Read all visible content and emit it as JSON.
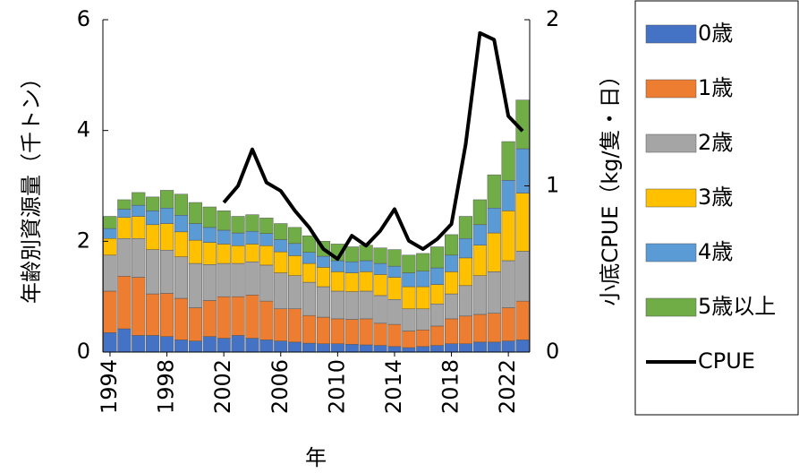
{
  "chart_data": {
    "type": "bar",
    "stacked": true,
    "x_label": "年",
    "y_label": "年齢別資源量（千トン）",
    "y2_label": "小底CPUE（kg/隻・日）",
    "x": [
      1994,
      1995,
      1996,
      1997,
      1998,
      1999,
      2000,
      2001,
      2002,
      2003,
      2004,
      2005,
      2006,
      2007,
      2008,
      2009,
      2010,
      2011,
      2012,
      2013,
      2014,
      2015,
      2016,
      2017,
      2018,
      2019,
      2020,
      2021,
      2022,
      2023
    ],
    "xlim": [
      1993.5,
      2023.5
    ],
    "xticks": [
      1994,
      1998,
      2002,
      2006,
      2010,
      2014,
      2018,
      2022
    ],
    "ylim": [
      0,
      6
    ],
    "yticks": [
      0,
      2,
      4,
      6
    ],
    "y2lim": [
      0,
      2
    ],
    "y2ticks": [
      0,
      1,
      2
    ],
    "legend": "right",
    "series": [
      {
        "name": "0歳",
        "color": "#4472c4",
        "values": [
          0.35,
          0.42,
          0.3,
          0.3,
          0.28,
          0.22,
          0.2,
          0.28,
          0.25,
          0.3,
          0.25,
          0.22,
          0.2,
          0.18,
          0.16,
          0.15,
          0.15,
          0.14,
          0.13,
          0.12,
          0.1,
          0.08,
          0.1,
          0.12,
          0.15,
          0.15,
          0.18,
          0.18,
          0.2,
          0.22
        ]
      },
      {
        "name": "1歳",
        "color": "#ed7d31",
        "values": [
          0.75,
          0.95,
          1.05,
          0.75,
          0.78,
          0.75,
          0.6,
          0.65,
          0.75,
          0.7,
          0.78,
          0.7,
          0.58,
          0.6,
          0.5,
          0.48,
          0.45,
          0.45,
          0.47,
          0.4,
          0.4,
          0.3,
          0.3,
          0.35,
          0.45,
          0.5,
          0.5,
          0.52,
          0.6,
          0.7
        ]
      },
      {
        "name": "2歳",
        "color": "#a5a5a5",
        "values": [
          0.65,
          0.68,
          0.7,
          0.8,
          0.78,
          0.75,
          0.8,
          0.65,
          0.6,
          0.6,
          0.6,
          0.65,
          0.65,
          0.6,
          0.6,
          0.55,
          0.5,
          0.5,
          0.5,
          0.5,
          0.45,
          0.4,
          0.38,
          0.4,
          0.45,
          0.55,
          0.7,
          0.75,
          0.85,
          0.9
        ]
      },
      {
        "name": "3歳",
        "color": "#ffc000",
        "values": [
          0.3,
          0.38,
          0.4,
          0.45,
          0.48,
          0.45,
          0.42,
          0.4,
          0.35,
          0.32,
          0.32,
          0.35,
          0.38,
          0.36,
          0.34,
          0.35,
          0.35,
          0.34,
          0.35,
          0.38,
          0.4,
          0.4,
          0.4,
          0.35,
          0.4,
          0.5,
          0.55,
          0.7,
          0.9,
          1.05
        ]
      },
      {
        "name": "4歳",
        "color": "#5b9bd5",
        "values": [
          0.18,
          0.15,
          0.2,
          0.25,
          0.28,
          0.3,
          0.3,
          0.27,
          0.25,
          0.23,
          0.23,
          0.22,
          0.22,
          0.22,
          0.2,
          0.2,
          0.2,
          0.2,
          0.2,
          0.2,
          0.2,
          0.25,
          0.28,
          0.3,
          0.3,
          0.35,
          0.37,
          0.45,
          0.55,
          0.8
        ]
      },
      {
        "name": "5歳以上",
        "color": "#70ad47",
        "values": [
          0.22,
          0.17,
          0.23,
          0.25,
          0.32,
          0.38,
          0.38,
          0.37,
          0.35,
          0.3,
          0.3,
          0.28,
          0.29,
          0.29,
          0.3,
          0.27,
          0.3,
          0.27,
          0.28,
          0.28,
          0.3,
          0.32,
          0.32,
          0.38,
          0.37,
          0.4,
          0.45,
          0.6,
          0.7,
          0.88
        ]
      },
      {
        "name": "CPUE",
        "color": "#000000",
        "type": "line",
        "axis": "y2",
        "values": [
          null,
          null,
          null,
          null,
          null,
          null,
          null,
          null,
          0.9,
          1.0,
          1.22,
          1.02,
          0.97,
          0.85,
          0.75,
          0.62,
          0.56,
          0.7,
          0.64,
          0.73,
          0.86,
          0.67,
          0.62,
          0.68,
          0.77,
          1.25,
          1.92,
          1.88,
          1.42,
          1.33
        ]
      }
    ]
  }
}
